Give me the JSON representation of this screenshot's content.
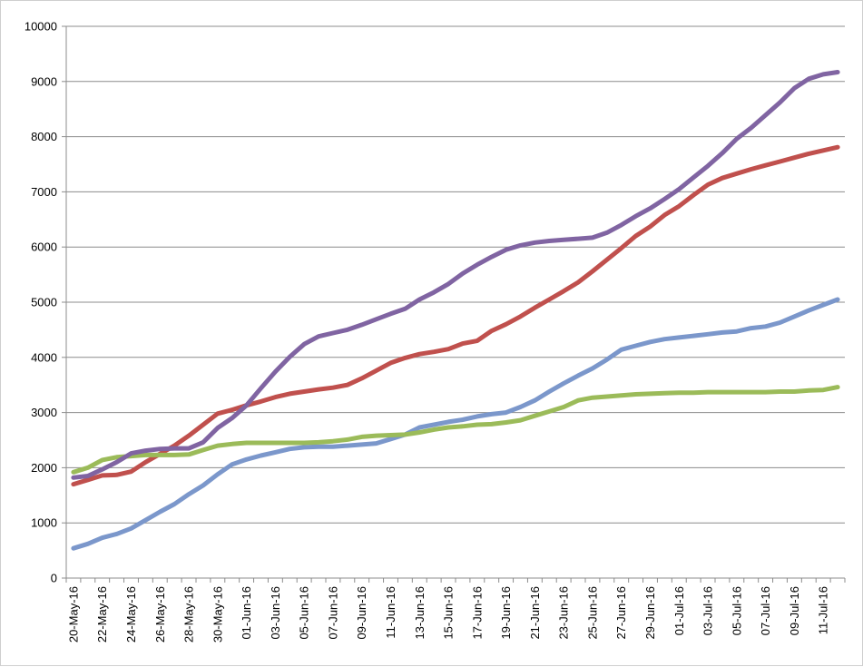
{
  "chart_data": {
    "type": "line",
    "title": "",
    "xlabel": "",
    "ylabel": "",
    "ylim": [
      0,
      10000
    ],
    "yticks": [
      0,
      1000,
      2000,
      3000,
      4000,
      5000,
      6000,
      7000,
      8000,
      9000,
      10000
    ],
    "grid": true,
    "legend": "none",
    "x": [
      "20-May-16",
      "21-May-16",
      "22-May-16",
      "23-May-16",
      "24-May-16",
      "25-May-16",
      "26-May-16",
      "27-May-16",
      "28-May-16",
      "29-May-16",
      "30-May-16",
      "31-May-16",
      "01-Jun-16",
      "02-Jun-16",
      "03-Jun-16",
      "04-Jun-16",
      "05-Jun-16",
      "06-Jun-16",
      "07-Jun-16",
      "08-Jun-16",
      "09-Jun-16",
      "10-Jun-16",
      "11-Jun-16",
      "12-Jun-16",
      "13-Jun-16",
      "14-Jun-16",
      "15-Jun-16",
      "16-Jun-16",
      "17-Jun-16",
      "18-Jun-16",
      "19-Jun-16",
      "20-Jun-16",
      "21-Jun-16",
      "22-Jun-16",
      "23-Jun-16",
      "24-Jun-16",
      "25-Jun-16",
      "26-Jun-16",
      "27-Jun-16",
      "28-Jun-16",
      "29-Jun-16",
      "30-Jun-16",
      "01-Jul-16",
      "02-Jul-16",
      "03-Jul-16",
      "04-Jul-16",
      "05-Jul-16",
      "06-Jul-16",
      "07-Jul-16",
      "08-Jul-16",
      "09-Jul-16",
      "10-Jul-16",
      "11-Jul-16",
      "12-Jul-16"
    ],
    "xtick_labels": [
      "20-May-16",
      "22-May-16",
      "24-May-16",
      "26-May-16",
      "28-May-16",
      "30-May-16",
      "01-Jun-16",
      "03-Jun-16",
      "05-Jun-16",
      "07-Jun-16",
      "09-Jun-16",
      "11-Jun-16",
      "13-Jun-16",
      "15-Jun-16",
      "17-Jun-16",
      "19-Jun-16",
      "21-Jun-16",
      "23-Jun-16",
      "25-Jun-16",
      "27-Jun-16",
      "29-Jun-16",
      "01-Jul-16",
      "03-Jul-16",
      "05-Jul-16",
      "07-Jul-16",
      "09-Jul-16",
      "11-Jul-16"
    ],
    "series": [
      {
        "color": "#7b97cb",
        "values": [
          540,
          620,
          730,
          800,
          900,
          1050,
          1200,
          1340,
          1520,
          1680,
          1880,
          2060,
          2150,
          2220,
          2280,
          2340,
          2370,
          2380,
          2380,
          2400,
          2420,
          2440,
          2520,
          2600,
          2730,
          2780,
          2830,
          2870,
          2930,
          2970,
          3000,
          3100,
          3220,
          3380,
          3530,
          3670,
          3800,
          3960,
          4140,
          4210,
          4280,
          4330,
          4360,
          4390,
          4420,
          4450,
          4470,
          4530,
          4560,
          4630,
          4740,
          4850,
          4950,
          5050
        ]
      },
      {
        "color": "#c0504d",
        "values": [
          1700,
          1780,
          1860,
          1870,
          1930,
          2100,
          2250,
          2400,
          2580,
          2780,
          2980,
          3050,
          3130,
          3200,
          3280,
          3340,
          3380,
          3420,
          3450,
          3500,
          3620,
          3760,
          3900,
          3990,
          4060,
          4100,
          4150,
          4250,
          4300,
          4480,
          4600,
          4740,
          4900,
          5050,
          5200,
          5360,
          5560,
          5770,
          5980,
          6200,
          6370,
          6580,
          6740,
          6940,
          7130,
          7250,
          7330,
          7410,
          7480,
          7550,
          7620,
          7690,
          7750,
          7810
        ]
      },
      {
        "color": "#9bbb59",
        "values": [
          1920,
          2000,
          2140,
          2190,
          2210,
          2230,
          2230,
          2230,
          2240,
          2320,
          2400,
          2430,
          2450,
          2450,
          2450,
          2450,
          2450,
          2460,
          2480,
          2510,
          2560,
          2580,
          2590,
          2600,
          2640,
          2690,
          2730,
          2750,
          2780,
          2790,
          2820,
          2860,
          2940,
          3020,
          3100,
          3220,
          3270,
          3290,
          3310,
          3330,
          3340,
          3350,
          3360,
          3360,
          3370,
          3370,
          3370,
          3370,
          3370,
          3380,
          3380,
          3400,
          3410,
          3460
        ]
      },
      {
        "color": "#8064a2",
        "values": [
          1820,
          1850,
          1970,
          2100,
          2260,
          2310,
          2340,
          2350,
          2350,
          2460,
          2720,
          2900,
          3130,
          3440,
          3740,
          4010,
          4240,
          4380,
          4440,
          4500,
          4590,
          4690,
          4790,
          4880,
          5050,
          5180,
          5330,
          5520,
          5680,
          5820,
          5950,
          6030,
          6080,
          6110,
          6130,
          6150,
          6170,
          6260,
          6400,
          6560,
          6700,
          6870,
          7050,
          7260,
          7470,
          7700,
          7960,
          8160,
          8390,
          8620,
          8880,
          9050,
          9130,
          9170
        ]
      }
    ]
  }
}
